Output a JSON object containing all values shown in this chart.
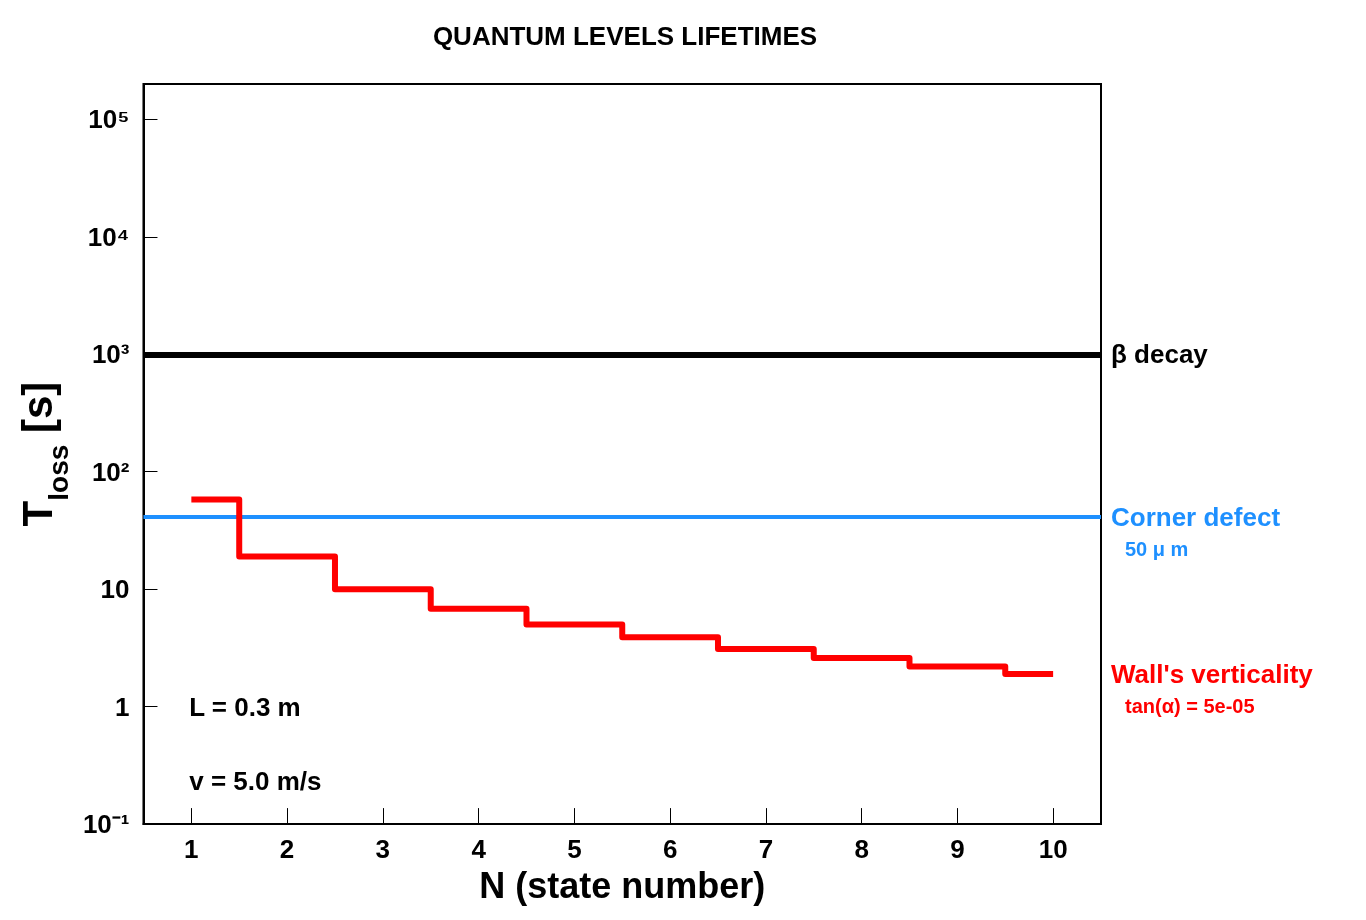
{
  "chart_data": {
    "type": "step",
    "title": "QUANTUM LEVELS LIFETIMES",
    "xlabel": "N (state number)",
    "ylabel": "T$_{loss}$ [s]",
    "log": "y",
    "x": [
      1,
      2,
      3,
      4,
      5,
      6,
      7,
      8,
      9,
      10
    ],
    "xlim": [
      0.5,
      10.5
    ],
    "xticks": [
      1,
      2,
      3,
      4,
      5,
      6,
      7,
      8,
      9,
      10
    ],
    "ylim": [
      0.1,
      200000
    ],
    "yticks": [
      {
        "value": 0.1,
        "label": "10⁻¹"
      },
      1,
      10,
      {
        "value": 100,
        "label": "10²"
      },
      {
        "value": 1000,
        "label": "10³"
      },
      {
        "value": 10000,
        "label": "10⁴"
      },
      {
        "value": 100000,
        "label": "10⁵"
      }
    ],
    "series": [
      {
        "name": "Wall's verticality",
        "color": "#ff0000",
        "values": [
          58,
          19,
          10,
          6.8,
          5.0,
          3.9,
          3.1,
          2.6,
          2.2,
          1.9
        ]
      }
    ],
    "ref_lines": [
      {
        "axis": "y",
        "value": 1000,
        "label": "β decay",
        "color": "#000000"
      },
      {
        "axis": "y",
        "value": 41,
        "label": "Corner defect",
        "color": "#1e90ff"
      }
    ],
    "annotations": [
      "L = 0.3 m",
      "v = 5.0 m/s",
      "50 μ m",
      "tan(α) = 5e-05"
    ]
  }
}
